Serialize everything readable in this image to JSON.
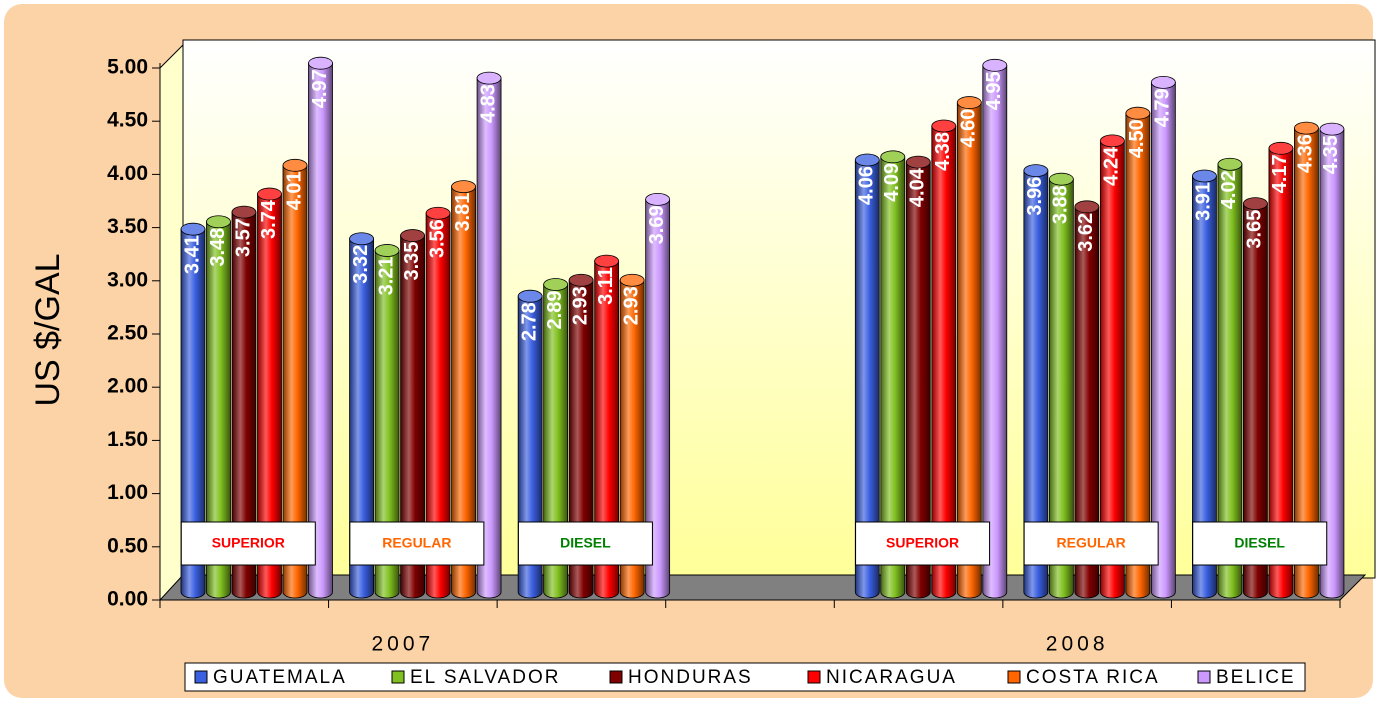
{
  "chart_data": {
    "type": "bar",
    "y_label": "US $/GAL",
    "categories": [
      "SUPERIOR",
      "REGULAR",
      "DIESEL",
      null,
      "SUPERIOR",
      "REGULAR",
      "DIESEL"
    ],
    "category_label_colors": [
      "#ff0000",
      "#ff6600",
      "#008000",
      null,
      "#ff0000",
      "#ff6600",
      "#008000"
    ],
    "groups": [
      {
        "label": "2007",
        "slots": [
          0,
          1,
          2
        ]
      },
      {
        "label": "2008",
        "slots": [
          4,
          5,
          6
        ]
      }
    ],
    "ylim": [
      0,
      5
    ],
    "yticks": [
      {
        "value": 0,
        "label": "0.00"
      },
      {
        "value": 0.5,
        "label": "0.50"
      },
      {
        "value": 1,
        "label": "1.00"
      },
      {
        "value": 1.5,
        "label": "1.50"
      },
      {
        "value": 2,
        "label": "2.00"
      },
      {
        "value": 2.5,
        "label": "2.50"
      },
      {
        "value": 3,
        "label": "3.00"
      },
      {
        "value": 3.5,
        "label": "3.50"
      },
      {
        "value": 4,
        "label": "4.00"
      },
      {
        "value": 4.5,
        "label": "4.50"
      },
      {
        "value": 5,
        "label": "5.00"
      }
    ],
    "legend": "bottom",
    "series": [
      {
        "name": "GUATEMALA",
        "color": "#3a5fe0",
        "values": [
          3.41,
          3.32,
          2.78,
          null,
          4.06,
          3.96,
          3.91
        ],
        "value_labels": [
          "3.41",
          "3.32",
          "2.78",
          null,
          "4.06",
          "3.96",
          "3.91"
        ]
      },
      {
        "name": "EL SALVADOR",
        "color": "#80c020",
        "values": [
          3.48,
          3.21,
          2.89,
          null,
          4.09,
          3.88,
          4.02
        ],
        "value_labels": [
          "3.48",
          "3.21",
          "2.89",
          null,
          "4.09",
          "3.88",
          "4.02"
        ]
      },
      {
        "name": "HONDURAS",
        "color": "#800000",
        "values": [
          3.57,
          3.35,
          2.93,
          null,
          4.04,
          3.62,
          3.65
        ],
        "value_labels": [
          "3.57",
          "3.35",
          "2.93",
          null,
          "4.04",
          "3.62",
          "3.65"
        ]
      },
      {
        "name": "NICARAGUA",
        "color": "#ff0000",
        "values": [
          3.74,
          3.56,
          3.11,
          null,
          4.38,
          4.24,
          4.17
        ],
        "value_labels": [
          "3.74",
          "3.56",
          "3.11",
          null,
          "4.38",
          "4.24",
          "4.17"
        ]
      },
      {
        "name": "COSTA RICA",
        "color": "#ff6600",
        "values": [
          4.01,
          3.81,
          2.93,
          null,
          4.6,
          4.5,
          4.36
        ],
        "value_labels": [
          "4.01",
          "3.81",
          "2.93",
          null,
          "4.60",
          "4.50",
          "4.36"
        ]
      },
      {
        "name": "BELICE",
        "color": "#cc99ff",
        "values": [
          4.97,
          4.83,
          3.69,
          null,
          4.95,
          4.79,
          4.35
        ],
        "value_labels": [
          "4.97",
          "4.83",
          "3.69",
          null,
          "4.95",
          "4.79",
          "4.35"
        ]
      }
    ]
  }
}
